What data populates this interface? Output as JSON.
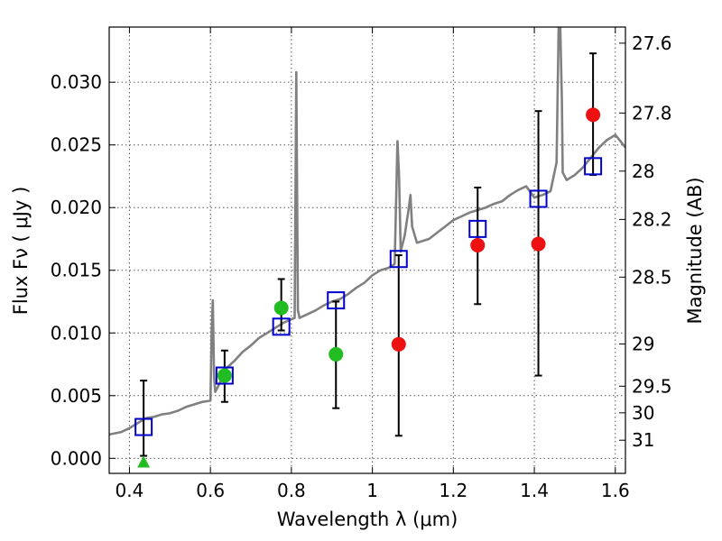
{
  "chart_data": {
    "type": "scatter",
    "xlabel": "Wavelength  λ (μm)",
    "ylabel": "Flux  Fν  ( μJy )",
    "y2label": "Magnitude (AB)",
    "xlim": [
      0.35,
      1.625
    ],
    "ylim": [
      -0.0012,
      0.0344
    ],
    "grid": true,
    "x_ticks": [
      {
        "value": 0.4,
        "label": "0.4"
      },
      {
        "value": 0.6,
        "label": "0.6"
      },
      {
        "value": 0.8,
        "label": "0.8"
      },
      {
        "value": 1.0,
        "label": "1"
      },
      {
        "value": 1.2,
        "label": "1.2"
      },
      {
        "value": 1.4,
        "label": "1.4"
      },
      {
        "value": 1.6,
        "label": "1.6"
      }
    ],
    "y_ticks": [
      {
        "value": 0.0,
        "label": "0.000"
      },
      {
        "value": 0.005,
        "label": "0.005"
      },
      {
        "value": 0.01,
        "label": "0.010"
      },
      {
        "value": 0.015,
        "label": "0.015"
      },
      {
        "value": 0.02,
        "label": "0.020"
      },
      {
        "value": 0.025,
        "label": "0.025"
      },
      {
        "value": 0.03,
        "label": "0.030"
      }
    ],
    "y2_ticks": [
      {
        "value": 27.6,
        "label": "27.6"
      },
      {
        "value": 27.8,
        "label": "27.8"
      },
      {
        "value": 28.0,
        "label": "28"
      },
      {
        "value": 28.2,
        "label": "28.2"
      },
      {
        "value": 28.5,
        "label": "28.5"
      },
      {
        "value": 29.0,
        "label": "29"
      },
      {
        "value": 29.5,
        "label": "29.5"
      },
      {
        "value": 30.0,
        "label": "30"
      },
      {
        "value": 31.0,
        "label": "31"
      }
    ],
    "colors": {
      "model": "#808080",
      "model_photometry": "#0000cc",
      "green_points": "#22bb22",
      "red_points": "#ee1111",
      "errorbar": "#000000"
    },
    "series": [
      {
        "kind": "line",
        "x": [
          0.35,
          0.38,
          0.4,
          0.42,
          0.44,
          0.46,
          0.48,
          0.5,
          0.52,
          0.54,
          0.56,
          0.58,
          0.6,
          0.603,
          0.606,
          0.609,
          0.612,
          0.62,
          0.64,
          0.66,
          0.68,
          0.7,
          0.72,
          0.74,
          0.76,
          0.78,
          0.8,
          0.808,
          0.812,
          0.816,
          0.82,
          0.84,
          0.86,
          0.88,
          0.9,
          0.92,
          0.94,
          0.96,
          0.98,
          1.0,
          1.02,
          1.04,
          1.055,
          1.062,
          1.066,
          1.07,
          1.08,
          1.09,
          1.094,
          1.098,
          1.11,
          1.14,
          1.16,
          1.18,
          1.2,
          1.22,
          1.24,
          1.26,
          1.28,
          1.3,
          1.32,
          1.34,
          1.36,
          1.38,
          1.4,
          1.42,
          1.44,
          1.455,
          1.46,
          1.464,
          1.468,
          1.47,
          1.48,
          1.5,
          1.52,
          1.54,
          1.56,
          1.58,
          1.6,
          1.625
        ],
        "y": [
          0.0019,
          0.0021,
          0.0024,
          0.0028,
          0.0032,
          0.0033,
          0.0035,
          0.0036,
          0.0038,
          0.0041,
          0.0043,
          0.0045,
          0.0046,
          0.01,
          0.0126,
          0.0065,
          0.0053,
          0.0058,
          0.0072,
          0.0078,
          0.0085,
          0.009,
          0.0096,
          0.01,
          0.0104,
          0.0108,
          0.0111,
          0.0112,
          0.0308,
          0.0118,
          0.0112,
          0.0115,
          0.0118,
          0.0122,
          0.0125,
          0.0127,
          0.0131,
          0.0136,
          0.014,
          0.0146,
          0.015,
          0.0152,
          0.0155,
          0.0253,
          0.0225,
          0.0165,
          0.0178,
          0.02,
          0.021,
          0.0185,
          0.0172,
          0.0175,
          0.018,
          0.0185,
          0.019,
          0.0193,
          0.0196,
          0.0198,
          0.02,
          0.0203,
          0.0205,
          0.021,
          0.0214,
          0.0217,
          0.0208,
          0.021,
          0.0213,
          0.0236,
          0.0344,
          0.0344,
          0.0285,
          0.0228,
          0.0222,
          0.0226,
          0.0232,
          0.024,
          0.0248,
          0.0254,
          0.0258,
          0.0248
        ]
      },
      {
        "kind": "model-photometry",
        "marker": "square",
        "x": [
          0.435,
          0.635,
          0.775,
          0.91,
          1.065,
          1.26,
          1.41,
          1.545
        ],
        "y": [
          0.0025,
          0.0066,
          0.0105,
          0.0126,
          0.0159,
          0.0183,
          0.0207,
          0.0233
        ]
      },
      {
        "kind": "measured",
        "marker": "circle",
        "color": "green",
        "x": [
          0.635,
          0.775,
          0.91
        ],
        "y": [
          0.0066,
          0.012,
          0.0083
        ]
      },
      {
        "kind": "upper-limit",
        "marker": "triangle",
        "color": "green",
        "x": [
          0.435
        ],
        "y": [
          -0.0003
        ]
      },
      {
        "kind": "measured",
        "marker": "circle",
        "color": "red",
        "x": [
          1.065,
          1.26,
          1.41,
          1.545
        ],
        "y": [
          0.0091,
          0.017,
          0.0171,
          0.0274
        ]
      }
    ],
    "errorbars": [
      {
        "x": 0.435,
        "low": 0.0002,
        "high": 0.0062
      },
      {
        "x": 0.635,
        "low": 0.0045,
        "high": 0.0086
      },
      {
        "x": 0.775,
        "low": 0.0102,
        "high": 0.0143
      },
      {
        "x": 0.91,
        "low": 0.004,
        "high": 0.0125
      },
      {
        "x": 1.065,
        "low": 0.0018,
        "high": 0.0162
      },
      {
        "x": 1.26,
        "low": 0.0123,
        "high": 0.0216
      },
      {
        "x": 1.41,
        "low": 0.0066,
        "high": 0.0277
      },
      {
        "x": 1.545,
        "low": 0.0226,
        "high": 0.0323
      }
    ]
  }
}
